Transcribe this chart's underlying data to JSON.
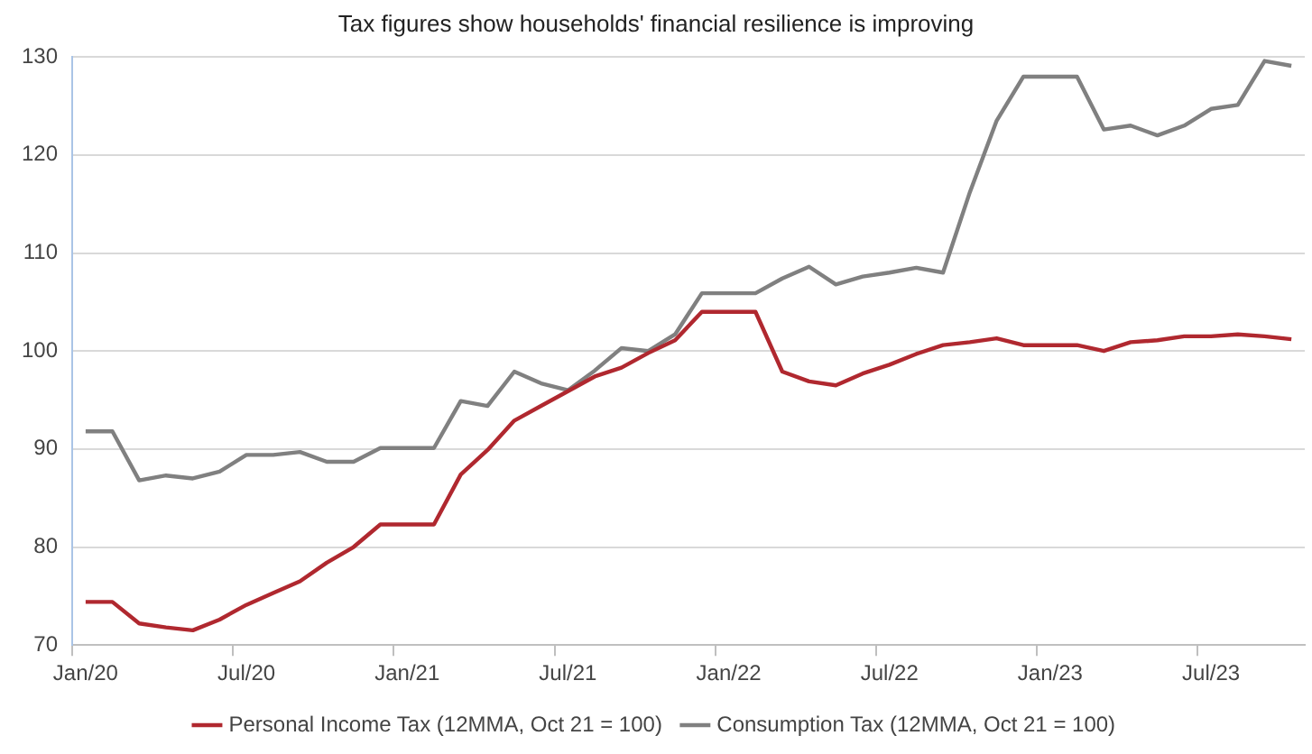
{
  "chart_data": {
    "type": "line",
    "title": "Tax figures show households' financial resilience is improving",
    "categories": [
      "Jan/20",
      null,
      null,
      null,
      null,
      null,
      "Jul/20",
      null,
      null,
      null,
      null,
      null,
      "Jan/21",
      null,
      null,
      null,
      null,
      null,
      "Jul/21",
      null,
      null,
      null,
      null,
      null,
      "Jan/22",
      null,
      null,
      null,
      null,
      null,
      "Jul/22",
      null,
      null,
      null,
      null,
      null,
      "Jan/23",
      null,
      null,
      null,
      null,
      null,
      "Jul/23",
      null,
      null,
      null
    ],
    "series": [
      {
        "name": "Personal Income Tax (12MMA, Oct 21 = 100)",
        "color": "#b0282f",
        "values": [
          74.4,
          74.4,
          72.2,
          71.8,
          71.5,
          72.6,
          74.1,
          75.3,
          76.5,
          78.4,
          80.0,
          82.3,
          82.3,
          82.3,
          87.4,
          89.9,
          92.9,
          94.4,
          95.9,
          97.4,
          98.3,
          99.8,
          101.1,
          104.0,
          104.0,
          104.0,
          97.9,
          96.9,
          96.5,
          97.7,
          98.6,
          99.7,
          100.6,
          100.9,
          101.3,
          100.6,
          100.6,
          100.6,
          100.0,
          100.9,
          101.1,
          101.5,
          101.5,
          101.7,
          101.5,
          101.2
        ]
      },
      {
        "name": "Consumption Tax (12MMA, Oct 21 = 100)",
        "color": "#808080",
        "values": [
          91.8,
          91.8,
          86.8,
          87.3,
          87.0,
          87.7,
          89.4,
          89.4,
          89.7,
          88.7,
          88.7,
          90.1,
          90.1,
          90.1,
          94.9,
          94.4,
          97.9,
          96.7,
          96.0,
          98.0,
          100.3,
          100.0,
          101.7,
          105.9,
          105.9,
          105.9,
          107.4,
          108.6,
          106.8,
          107.6,
          108.0,
          108.5,
          108.0,
          116.2,
          123.5,
          128.0,
          128.0,
          128.0,
          122.6,
          123.0,
          122.0,
          123.0,
          124.7,
          125.1,
          129.6,
          129.1
        ]
      }
    ],
    "ylim": [
      70,
      130
    ],
    "yticks": [
      70,
      80,
      90,
      100,
      110,
      120,
      130
    ],
    "grid": "y",
    "legend": "bottom"
  }
}
